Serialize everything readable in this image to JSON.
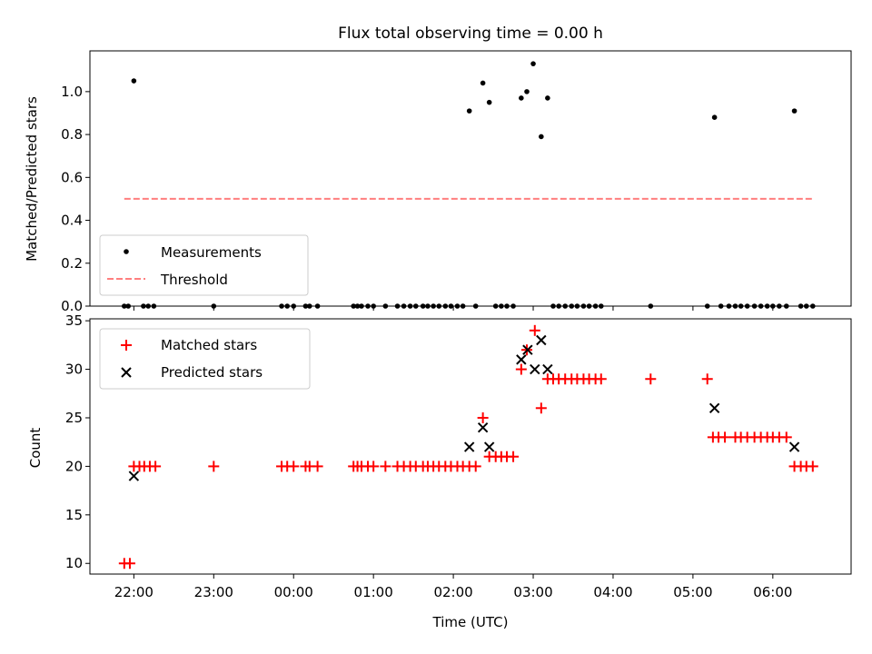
{
  "figure": {
    "title": "Flux total observing time = 0.00 h",
    "xlabel": "Time (UTC)",
    "xticks": [
      {
        "t": 22,
        "label": "22:00"
      },
      {
        "t": 23,
        "label": "23:00"
      },
      {
        "t": 24,
        "label": "00:00"
      },
      {
        "t": 25,
        "label": "01:00"
      },
      {
        "t": 26,
        "label": "02:00"
      },
      {
        "t": 27,
        "label": "03:00"
      },
      {
        "t": 28,
        "label": "04:00"
      },
      {
        "t": 29,
        "label": "05:00"
      },
      {
        "t": 30,
        "label": "06:00"
      }
    ]
  },
  "chart_data": [
    {
      "type": "scatter",
      "ylabel": "Matched/Predicted stars",
      "xlim": [
        21.45,
        30.98
      ],
      "ylim": [
        0,
        1.19
      ],
      "yticks": [
        0.0,
        0.2,
        0.4,
        0.6,
        0.8,
        1.0
      ],
      "ytick_labels": [
        "0.0",
        "0.2",
        "0.4",
        "0.6",
        "0.8",
        "1.0"
      ],
      "legend_position": "lower-left",
      "series": [
        {
          "name": "Measurements",
          "color": "#000000",
          "marker": "dot",
          "x": [
            21.88,
            21.93,
            22.0,
            22.12,
            22.18,
            22.25,
            23.0,
            23.85,
            23.92,
            24.0,
            24.15,
            24.2,
            24.3,
            24.75,
            24.8,
            24.85,
            24.93,
            25.0,
            25.15,
            25.3,
            25.38,
            25.46,
            25.53,
            25.62,
            25.68,
            25.75,
            25.82,
            25.9,
            25.97,
            26.05,
            26.12,
            26.2,
            26.28,
            26.37,
            26.45,
            26.53,
            26.6,
            26.67,
            26.75,
            26.85,
            26.92,
            27.0,
            27.1,
            27.18,
            27.25,
            27.32,
            27.4,
            27.48,
            27.55,
            27.63,
            27.7,
            27.78,
            27.85,
            28.47,
            29.18,
            29.27,
            29.35,
            29.45,
            29.53,
            29.6,
            29.68,
            29.77,
            29.85,
            29.93,
            30.0,
            30.08,
            30.17,
            30.27,
            30.35,
            30.42,
            30.5
          ],
          "y": [
            0,
            0,
            1.05,
            0,
            0,
            0,
            0,
            0,
            0,
            0,
            0,
            0,
            0,
            0,
            0,
            0,
            0,
            0,
            0,
            0,
            0,
            0,
            0,
            0,
            0,
            0,
            0,
            0,
            0,
            0,
            0,
            0.91,
            0,
            1.04,
            0.95,
            0,
            0,
            0,
            0,
            0.97,
            1.0,
            1.13,
            0.79,
            0.97,
            0,
            0,
            0,
            0,
            0,
            0,
            0,
            0,
            0,
            0,
            0,
            0.88,
            0,
            0,
            0,
            0,
            0,
            0,
            0,
            0,
            0,
            0,
            0,
            0.91,
            0,
            0,
            0
          ]
        },
        {
          "name": "Threshold",
          "type": "line",
          "color": "#ff7f7f",
          "style": "dashed",
          "x": [
            21.88,
            30.52
          ],
          "y": [
            0.5,
            0.5
          ]
        }
      ]
    },
    {
      "type": "scatter",
      "ylabel": "Count",
      "xlim": [
        21.45,
        30.98
      ],
      "ylim": [
        8.9,
        35.2
      ],
      "yticks": [
        10,
        15,
        20,
        25,
        30,
        35
      ],
      "ytick_labels": [
        "10",
        "15",
        "20",
        "25",
        "30",
        "35"
      ],
      "legend_position": "upper-left",
      "series": [
        {
          "name": "Matched stars",
          "color": "#ff0000",
          "marker": "plus",
          "x": [
            21.88,
            21.95,
            22.0,
            22.07,
            22.13,
            22.2,
            22.27,
            23.0,
            23.85,
            23.92,
            24.0,
            24.15,
            24.2,
            24.3,
            24.75,
            24.8,
            24.85,
            24.93,
            25.0,
            25.15,
            25.3,
            25.38,
            25.46,
            25.53,
            25.62,
            25.68,
            25.75,
            25.82,
            25.9,
            25.97,
            26.05,
            26.12,
            26.2,
            26.28,
            26.37,
            26.45,
            26.53,
            26.6,
            26.67,
            26.75,
            26.85,
            26.92,
            27.02,
            27.1,
            27.18,
            27.25,
            27.32,
            27.4,
            27.48,
            27.55,
            27.63,
            27.7,
            27.78,
            27.85,
            28.47,
            29.18,
            29.25,
            29.32,
            29.4,
            29.53,
            29.6,
            29.68,
            29.77,
            29.85,
            29.93,
            30.0,
            30.08,
            30.17,
            30.27,
            30.35,
            30.42,
            30.5
          ],
          "y": [
            10,
            10,
            20,
            20,
            20,
            20,
            20,
            20,
            20,
            20,
            20,
            20,
            20,
            20,
            20,
            20,
            20,
            20,
            20,
            20,
            20,
            20,
            20,
            20,
            20,
            20,
            20,
            20,
            20,
            20,
            20,
            20,
            20,
            20,
            25,
            21,
            21,
            21,
            21,
            21,
            30,
            32,
            34,
            26,
            29,
            29,
            29,
            29,
            29,
            29,
            29,
            29,
            29,
            29,
            29,
            29,
            23,
            23,
            23,
            23,
            23,
            23,
            23,
            23,
            23,
            23,
            23,
            23,
            20,
            20,
            20,
            20
          ]
        },
        {
          "name": "Predicted stars",
          "color": "#000000",
          "marker": "x",
          "x": [
            22.0,
            26.2,
            26.37,
            26.45,
            26.85,
            26.93,
            27.02,
            27.1,
            27.18,
            29.27,
            30.27
          ],
          "y": [
            19,
            22,
            24,
            22,
            31,
            32,
            30,
            33,
            30,
            26,
            22
          ]
        }
      ]
    }
  ]
}
